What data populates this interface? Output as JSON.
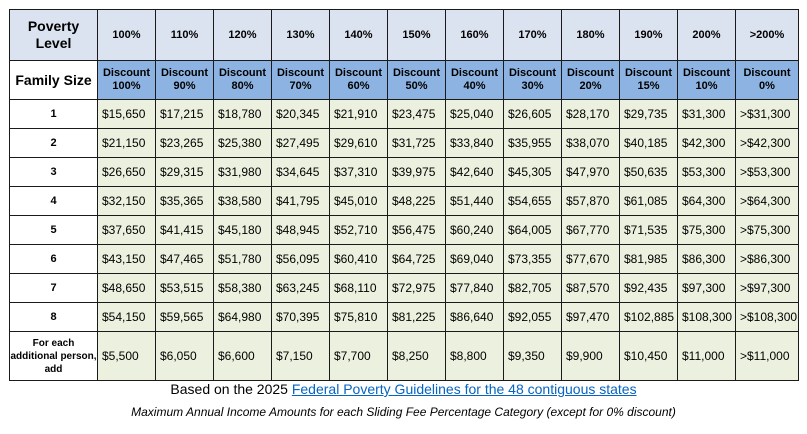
{
  "header": {
    "first_label": "Poverty Level",
    "levels": [
      "100%",
      "110%",
      "120%",
      "130%",
      "140%",
      "150%",
      "160%",
      "170%",
      "180%",
      "190%",
      "200%",
      ">200%"
    ]
  },
  "discount_row": {
    "first_label": "Family Size",
    "discounts": [
      [
        "Discount",
        "100%"
      ],
      [
        "Discount",
        "90%"
      ],
      [
        "Discount",
        "80%"
      ],
      [
        "Discount",
        "70%"
      ],
      [
        "Discount",
        "60%"
      ],
      [
        "Discount",
        "50%"
      ],
      [
        "Discount",
        "40%"
      ],
      [
        "Discount",
        "30%"
      ],
      [
        "Discount",
        "20%"
      ],
      [
        "Discount",
        "15%"
      ],
      [
        "Discount",
        "10%"
      ],
      [
        "Discount",
        "0%"
      ]
    ]
  },
  "rows": [
    {
      "label": "1",
      "values": [
        "$15,650",
        "$17,215",
        "$18,780",
        "$20,345",
        "$21,910",
        "$23,475",
        "$25,040",
        "$26,605",
        "$28,170",
        "$29,735",
        "$31,300",
        ">$31,300"
      ]
    },
    {
      "label": "2",
      "values": [
        "$21,150",
        "$23,265",
        "$25,380",
        "$27,495",
        "$29,610",
        "$31,725",
        "$33,840",
        "$35,955",
        "$38,070",
        "$40,185",
        "$42,300",
        ">$42,300"
      ]
    },
    {
      "label": "3",
      "values": [
        "$26,650",
        "$29,315",
        "$31,980",
        "$34,645",
        "$37,310",
        "$39,975",
        "$42,640",
        "$45,305",
        "$47,970",
        "$50,635",
        "$53,300",
        ">$53,300"
      ]
    },
    {
      "label": "4",
      "values": [
        "$32,150",
        "$35,365",
        "$38,580",
        "$41,795",
        "$45,010",
        "$48,225",
        "$51,440",
        "$54,655",
        "$57,870",
        "$61,085",
        "$64,300",
        ">$64,300"
      ]
    },
    {
      "label": "5",
      "values": [
        "$37,650",
        "$41,415",
        "$45,180",
        "$48,945",
        "$52,710",
        "$56,475",
        "$60,240",
        "$64,005",
        "$67,770",
        "$71,535",
        "$75,300",
        ">$75,300"
      ]
    },
    {
      "label": "6",
      "values": [
        "$43,150",
        "$47,465",
        "$51,780",
        "$56,095",
        "$60,410",
        "$64,725",
        "$69,040",
        "$73,355",
        "$77,670",
        "$81,985",
        "$86,300",
        ">$86,300"
      ]
    },
    {
      "label": "7",
      "values": [
        "$48,650",
        "$53,515",
        "$58,380",
        "$63,245",
        "$68,110",
        "$72,975",
        "$77,840",
        "$82,705",
        "$87,570",
        "$92,435",
        "$97,300",
        ">$97,300"
      ]
    },
    {
      "label": "8",
      "values": [
        "$54,150",
        "$59,565",
        "$64,980",
        "$70,395",
        "$75,810",
        "$81,225",
        "$86,640",
        "$92,055",
        "$97,470",
        "$102,885",
        "$108,300",
        ">$108,300"
      ]
    },
    {
      "label": "For each additional person, add",
      "values": [
        "$5,500",
        "$6,050",
        "$6,600",
        "$7,150",
        "$7,700",
        "$8,250",
        "$8,800",
        "$9,350",
        "$9,900",
        "$10,450",
        "$11,000",
        ">$11,000"
      ]
    }
  ],
  "caption": {
    "prefix": "Based on the 2025 ",
    "link_text": "Federal Poverty Guidelines for the 48 contiguous states",
    "subtitle": "Maximum Annual Income Amounts for each Sliding Fee Percentage Category (except for 0% discount)"
  },
  "colors": {
    "header_bg": "#dbe3f0",
    "discount_bg": "#8db3e2",
    "value_bg": "#ebf1de",
    "link": "#0563c1"
  }
}
